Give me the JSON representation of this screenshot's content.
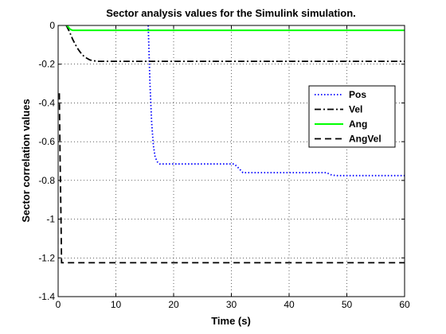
{
  "chart_data": {
    "type": "line",
    "title": "Sector analysis values for the Simulink simulation.",
    "xlabel": "Time (s)",
    "ylabel": "Sector correlation values",
    "xlim": [
      0,
      60
    ],
    "ylim": [
      -1.4,
      0
    ],
    "xticks": [
      0,
      10,
      20,
      30,
      40,
      50,
      60
    ],
    "xtick_labels": [
      "0",
      "10",
      "20",
      "30",
      "40",
      "50",
      "60"
    ],
    "yticks": [
      0,
      -0.2,
      -0.4,
      -0.6,
      -0.8,
      -1,
      -1.2,
      -1.4
    ],
    "ytick_labels": [
      "0",
      "-0.2",
      "-0.4",
      "-0.6",
      "-0.8",
      "-1",
      "-1.2",
      "-1.4"
    ],
    "grid": true,
    "legend_position": "right",
    "series": [
      {
        "name": "Pos",
        "color": "#0000ff",
        "style": "dotted",
        "x": [
          15.6,
          15.9,
          16.2,
          16.5,
          16.8,
          17.2,
          17.6,
          20,
          25,
          30.5,
          31.2,
          32,
          40,
          46.5,
          47.2,
          48,
          55,
          60
        ],
        "y": [
          0,
          -0.3,
          -0.5,
          -0.62,
          -0.68,
          -0.705,
          -0.715,
          -0.715,
          -0.715,
          -0.715,
          -0.735,
          -0.76,
          -0.76,
          -0.76,
          -0.77,
          -0.775,
          -0.775,
          -0.775
        ]
      },
      {
        "name": "Vel",
        "color": "#000000",
        "style": "dashdot",
        "x": [
          1.4,
          2,
          2.5,
          3,
          3.5,
          4,
          4.5,
          5,
          5.5,
          6,
          7,
          10,
          20,
          40,
          60
        ],
        "y": [
          0,
          -0.035,
          -0.07,
          -0.1,
          -0.125,
          -0.145,
          -0.16,
          -0.17,
          -0.178,
          -0.182,
          -0.185,
          -0.185,
          -0.185,
          -0.185,
          -0.185
        ]
      },
      {
        "name": "Ang",
        "color": "#00ff00",
        "style": "solid",
        "x": [
          1.5,
          1.8,
          2.1,
          2.5,
          3,
          60
        ],
        "y": [
          0,
          -0.01,
          -0.02,
          -0.025,
          -0.025,
          -0.025
        ]
      },
      {
        "name": "AngVel",
        "color": "#000000",
        "style": "dashed",
        "x": [
          0.2,
          0.35,
          0.5,
          0.6,
          1,
          10,
          30,
          60
        ],
        "y": [
          -0.35,
          -0.7,
          -1.0,
          -1.225,
          -1.225,
          -1.225,
          -1.225,
          -1.225
        ]
      }
    ]
  }
}
